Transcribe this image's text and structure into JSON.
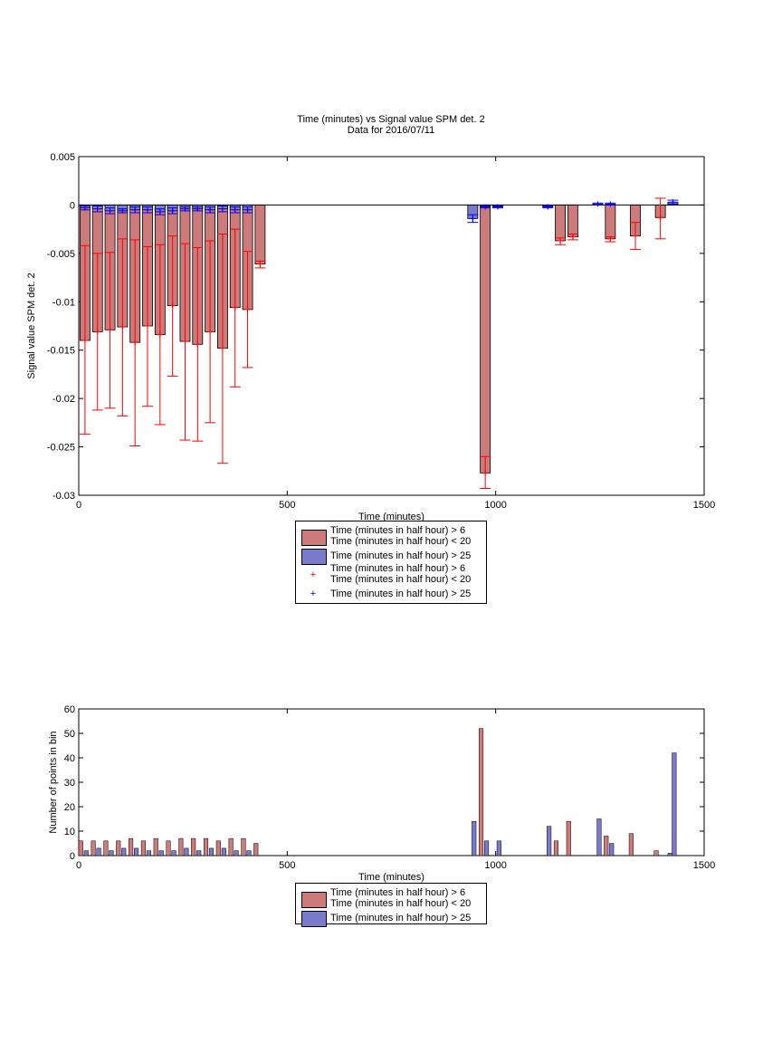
{
  "top_chart": {
    "title": "Time (minutes) vs Signal value SPM det. 2",
    "subtitle": "Data for 2016/07/11",
    "xlabel": "Time (minutes)",
    "ylabel": "Signal value SPM det. 2",
    "legend": {
      "entries": [
        {
          "kind": "bar",
          "text": "Time (minutes in half hour) > 6\nTime (minutes in half hour) < 20",
          "color": "#cc7a7a"
        },
        {
          "kind": "bar",
          "text": "Time (minutes in half hour) > 25",
          "color": "#7a7acc"
        },
        {
          "kind": "marker",
          "text": "Time (minutes in half hour) > 6\nTime (minutes in half hour) < 20",
          "color": "#ff0000"
        },
        {
          "kind": "marker",
          "text": "Time (minutes in half hour) > 25",
          "color": "#0000ff"
        }
      ]
    }
  },
  "bottom_chart": {
    "xlabel": "Time (minutes)",
    "ylabel": "Number of points in bin",
    "legend": {
      "entries": [
        {
          "kind": "bar",
          "text": "Time (minutes in half hour) > 6\nTime (minutes in half hour) < 20",
          "color": "#cc7a7a"
        },
        {
          "kind": "bar",
          "text": "Time (minutes in half hour) > 25",
          "color": "#7a7acc"
        }
      ]
    }
  },
  "chart_data": [
    {
      "type": "bar",
      "title": "Time (minutes) vs Signal value SPM det. 2",
      "subtitle": "Data for 2016/07/11",
      "xlabel": "Time (minutes)",
      "ylabel": "Signal value SPM det. 2",
      "xlim": [
        0,
        1500
      ],
      "ylim": [
        -0.03,
        0.005
      ],
      "xticks": [
        0,
        500,
        1000,
        1500
      ],
      "xtick_labels": [
        "0",
        "500",
        "1000",
        "1500"
      ],
      "yticks": [
        0.005,
        0,
        -0.005,
        -0.01,
        -0.015,
        -0.02,
        -0.025,
        -0.03
      ],
      "ytick_labels": [
        "0.005",
        "0",
        "-0.005",
        "-0.01",
        "-0.015",
        "-0.02",
        "-0.025",
        "-0.03"
      ],
      "grid": false,
      "legend_position": "bottom",
      "bar_width": 24,
      "series": [
        {
          "name": "Time (minutes in half hour) > 6\nTime (minutes in half hour) < 20",
          "color": "#cc7a7a",
          "error_color": "#ff0000",
          "x": [
            15,
            45,
            75,
            105,
            135,
            165,
            195,
            225,
            255,
            285,
            315,
            345,
            375,
            405,
            435,
            975,
            1155,
            1185,
            1275,
            1335,
            1395
          ],
          "values": [
            -0.014,
            -0.0131,
            -0.0129,
            -0.0126,
            -0.0142,
            -0.0125,
            -0.0134,
            -0.0104,
            -0.0141,
            -0.0144,
            -0.0131,
            -0.0148,
            -0.0106,
            -0.0108,
            -0.0061,
            -0.0277,
            -0.0037,
            -0.0033,
            -0.0035,
            -0.0032,
            -0.0013
          ],
          "err_low": [
            0.0097,
            0.0081,
            0.0081,
            0.0092,
            0.0107,
            0.0083,
            0.0093,
            0.0073,
            0.0102,
            0.01,
            0.0094,
            0.0119,
            0.0082,
            0.006,
            0.0004,
            0.0016,
            0.0004,
            0.0003,
            0.0003,
            0.0014,
            0.0022
          ],
          "err_high": [
            0.0098,
            0.0081,
            0.008,
            0.0091,
            0.0106,
            0.0082,
            0.0093,
            0.0072,
            0.0101,
            0.01,
            0.0094,
            0.0118,
            0.0081,
            0.006,
            0.0003,
            0.0017,
            0.0003,
            0.0003,
            0.0002,
            0.0014,
            0.002
          ]
        },
        {
          "name": "Time (minutes in half hour) > 25",
          "color": "#7a7acc",
          "error_color": "#0000ff",
          "x": [
            15,
            45,
            75,
            105,
            135,
            165,
            195,
            225,
            255,
            285,
            315,
            345,
            375,
            405,
            945,
            975,
            1005,
            1125,
            1245,
            1275,
            1425
          ],
          "values": [
            -0.0003,
            -0.0004,
            -0.0006,
            -0.0006,
            -0.0005,
            -0.0005,
            -0.0007,
            -0.0006,
            -0.0004,
            -0.0004,
            -0.0005,
            -0.0004,
            -0.0005,
            -0.0005,
            -0.0014,
            -0.0002,
            -0.0002,
            -0.0002,
            0.0001,
            0.0001,
            0.0003
          ],
          "err_low": [
            0.0002,
            0.0003,
            0.0003,
            0.0002,
            0.0003,
            0.0003,
            0.0003,
            0.0003,
            0.0002,
            0.0002,
            0.0003,
            0.0003,
            0.0003,
            0.0003,
            0.0004,
            0.0001,
            0.0001,
            0.0001,
            0.0001,
            0.0001,
            0.0002
          ],
          "err_high": [
            0.0002,
            0.0003,
            0.0003,
            0.0002,
            0.0003,
            0.0003,
            0.0003,
            0.0003,
            0.0002,
            0.0002,
            0.0003,
            0.0003,
            0.0003,
            0.0003,
            0.0004,
            0.0001,
            0.0001,
            0.0001,
            0.0001,
            0.0001,
            0.0002
          ]
        }
      ]
    },
    {
      "type": "bar",
      "xlabel": "Time (minutes)",
      "ylabel": "Number of points in bin",
      "xlim": [
        0,
        1500
      ],
      "ylim": [
        0,
        60
      ],
      "xticks": [
        0,
        500,
        1000,
        1500
      ],
      "xtick_labels": [
        "0",
        "500",
        "1000",
        "1500"
      ],
      "yticks": [
        0,
        10,
        20,
        30,
        40,
        50,
        60
      ],
      "ytick_labels": [
        "0",
        "10",
        "20",
        "30",
        "40",
        "50",
        "60"
      ],
      "grid": false,
      "legend_position": "bottom",
      "bar_width": 10,
      "series": [
        {
          "name": "Time (minutes in half hour) > 6\nTime (minutes in half hour) < 20",
          "color": "#cc7a7a",
          "x": [
            5,
            35,
            65,
            95,
            125,
            155,
            185,
            215,
            245,
            275,
            305,
            335,
            365,
            395,
            425,
            965,
            1145,
            1175,
            1265,
            1325,
            1385
          ],
          "values": [
            6,
            6,
            6,
            6,
            7,
            6,
            7,
            6,
            7,
            7,
            7,
            6,
            7,
            7,
            5,
            52,
            6,
            14,
            8,
            9,
            2
          ]
        },
        {
          "name": "Time (minutes in half hour) > 25",
          "color": "#7a7acc",
          "x": [
            18,
            48,
            78,
            108,
            138,
            168,
            198,
            228,
            258,
            288,
            318,
            348,
            378,
            408,
            948,
            978,
            1008,
            1128,
            1248,
            1278,
            1418,
            1428
          ],
          "values": [
            2,
            3,
            2,
            3,
            3,
            2,
            2,
            2,
            3,
            2,
            3,
            3,
            2,
            2,
            14,
            6,
            6,
            12,
            15,
            5,
            1,
            42
          ]
        }
      ]
    }
  ]
}
